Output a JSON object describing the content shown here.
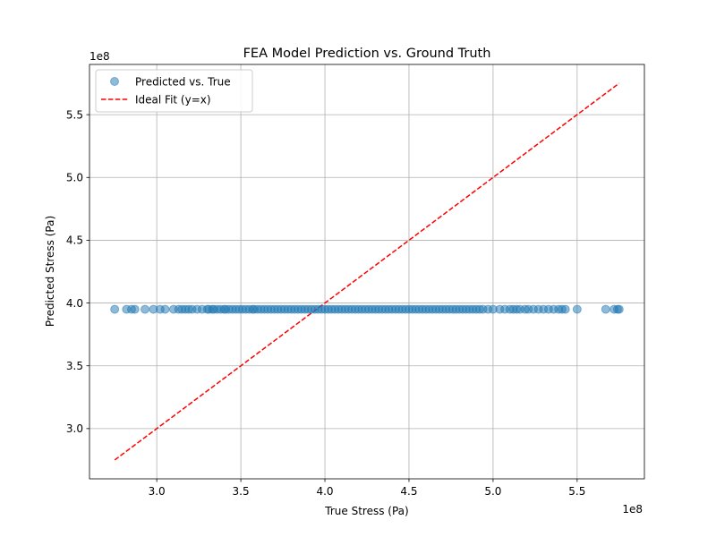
{
  "chart_data": {
    "type": "scatter",
    "title": "FEA Model Prediction vs. Ground Truth",
    "xlabel": "True Stress (Pa)",
    "ylabel": "Predicted Stress (Pa)",
    "x_offset_label": "1e8",
    "y_offset_label": "1e8",
    "xlim": [
      260000000.0,
      590000000.0
    ],
    "ylim": [
      260000000.0,
      590000000.0
    ],
    "xticks": [
      300000000.0,
      350000000.0,
      400000000.0,
      450000000.0,
      500000000.0,
      550000000.0
    ],
    "yticks": [
      300000000.0,
      350000000.0,
      400000000.0,
      450000000.0,
      500000000.0,
      550000000.0
    ],
    "xtick_labels": [
      "3.0",
      "3.5",
      "4.0",
      "4.5",
      "5.0",
      "5.5"
    ],
    "ytick_labels": [
      "3.0",
      "3.5",
      "4.0",
      "4.5",
      "5.0",
      "5.5"
    ],
    "grid": true,
    "legend_position": "top-left",
    "series": [
      {
        "name": "Predicted vs. True",
        "kind": "scatter",
        "color": "#1f77b4",
        "opacity": 0.5,
        "y_constant": 395000000.0,
        "x": [
          275000000.0,
          282000000.0,
          285000000.0,
          287000000.0,
          293000000.0,
          298000000.0,
          302000000.0,
          305000000.0,
          310000000.0,
          313000000.0,
          315000000.0,
          317000000.0,
          319000000.0,
          321000000.0,
          324000000.0,
          327000000.0,
          330000000.0,
          331000000.0,
          333000000.0,
          334000000.0,
          336000000.0,
          338000000.0,
          340000000.0,
          341000000.0,
          343000000.0,
          345000000.0,
          347000000.0,
          349000000.0,
          351000000.0,
          353000000.0,
          355000000.0,
          357000000.0,
          358000000.0,
          360000000.0,
          362000000.0,
          364000000.0,
          366000000.0,
          368000000.0,
          370000000.0,
          372000000.0,
          374000000.0,
          376000000.0,
          378000000.0,
          380000000.0,
          382000000.0,
          384000000.0,
          386000000.0,
          388000000.0,
          390000000.0,
          392000000.0,
          394000000.0,
          396000000.0,
          398000000.0,
          400000000.0,
          402000000.0,
          404000000.0,
          406000000.0,
          408000000.0,
          410000000.0,
          412000000.0,
          414000000.0,
          416000000.0,
          418000000.0,
          420000000.0,
          422000000.0,
          424000000.0,
          426000000.0,
          428000000.0,
          430000000.0,
          432000000.0,
          434000000.0,
          436000000.0,
          438000000.0,
          440000000.0,
          442000000.0,
          444000000.0,
          446000000.0,
          448000000.0,
          450000000.0,
          452000000.0,
          454000000.0,
          456000000.0,
          458000000.0,
          460000000.0,
          462000000.0,
          464000000.0,
          466000000.0,
          468000000.0,
          470000000.0,
          472000000.0,
          474000000.0,
          476000000.0,
          478000000.0,
          480000000.0,
          482000000.0,
          484000000.0,
          486000000.0,
          488000000.0,
          490000000.0,
          492000000.0,
          494000000.0,
          497000000.0,
          500000000.0,
          504000000.0,
          507000000.0,
          510000000.0,
          512000000.0,
          514000000.0,
          516000000.0,
          519000000.0,
          521000000.0,
          524000000.0,
          527000000.0,
          530000000.0,
          533000000.0,
          536000000.0,
          539000000.0,
          541000000.0,
          543000000.0,
          550000000.0,
          567000000.0,
          572000000.0,
          574000000.0,
          575000000.0
        ]
      },
      {
        "name": "Ideal Fit (y=x)",
        "kind": "line",
        "color": "#ff0000",
        "dash": "dashed",
        "x": [
          275000000.0,
          575000000.0
        ],
        "y": [
          275000000.0,
          575000000.0
        ]
      }
    ]
  }
}
